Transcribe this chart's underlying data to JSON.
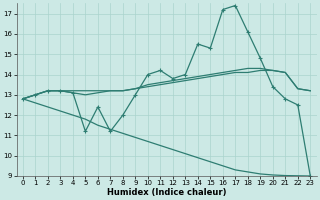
{
  "xlabel": "Humidex (Indice chaleur)",
  "bg_color": "#cce9e5",
  "grid_color": "#aad4ce",
  "line_color": "#2e7d72",
  "xlim": [
    -0.5,
    23.5
  ],
  "ylim": [
    9,
    17.5
  ],
  "yticks": [
    9,
    10,
    11,
    12,
    13,
    14,
    15,
    16,
    17
  ],
  "xticks": [
    0,
    1,
    2,
    3,
    4,
    5,
    6,
    7,
    8,
    9,
    10,
    11,
    12,
    13,
    14,
    15,
    16,
    17,
    18,
    19,
    20,
    21,
    22,
    23
  ],
  "line1_x": [
    0,
    1,
    2,
    3,
    4,
    5,
    6,
    7,
    8,
    9,
    10,
    11,
    12,
    13,
    14,
    15,
    16,
    17,
    18,
    19,
    20,
    21,
    22,
    23
  ],
  "line1_y": [
    12.8,
    13.0,
    13.2,
    13.2,
    13.1,
    11.2,
    12.4,
    11.2,
    12.0,
    13.0,
    14.0,
    14.2,
    13.8,
    14.0,
    15.5,
    15.3,
    17.2,
    17.4,
    16.1,
    14.8,
    13.4,
    12.8,
    12.5,
    9.0
  ],
  "line2_x": [
    0,
    1,
    2,
    3,
    4,
    5,
    6,
    7,
    8,
    9,
    10,
    11,
    12,
    13,
    14,
    15,
    16,
    17,
    18,
    19,
    20,
    21,
    22,
    23
  ],
  "line2_y": [
    12.8,
    13.0,
    13.2,
    13.2,
    13.1,
    13.0,
    13.1,
    13.2,
    13.2,
    13.3,
    13.5,
    13.6,
    13.7,
    13.8,
    13.9,
    14.0,
    14.1,
    14.2,
    14.3,
    14.3,
    14.2,
    14.1,
    13.3,
    13.2
  ],
  "line3_x": [
    0,
    1,
    2,
    3,
    8,
    9,
    10,
    11,
    12,
    13,
    14,
    15,
    16,
    17,
    18,
    19,
    20,
    21,
    22,
    23
  ],
  "line3_y": [
    12.8,
    13.0,
    13.2,
    13.2,
    13.2,
    13.3,
    13.4,
    13.5,
    13.6,
    13.7,
    13.8,
    13.9,
    14.0,
    14.1,
    14.1,
    14.2,
    14.2,
    14.1,
    13.3,
    13.2
  ],
  "line4_x": [
    0,
    1,
    2,
    3,
    4,
    5,
    6,
    7,
    8,
    9,
    10,
    11,
    12,
    13,
    14,
    15,
    16,
    17,
    18,
    19,
    20,
    21,
    22,
    23
  ],
  "line4_y": [
    12.8,
    12.6,
    12.4,
    12.2,
    12.0,
    11.8,
    11.5,
    11.3,
    11.1,
    10.9,
    10.7,
    10.5,
    10.3,
    10.1,
    9.9,
    9.7,
    9.5,
    9.3,
    9.2,
    9.1,
    9.05,
    9.02,
    9.01,
    9.0
  ]
}
